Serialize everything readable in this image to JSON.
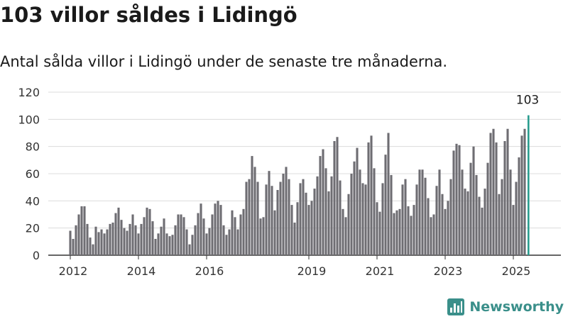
{
  "title": "103 villor såldes i Lidingö",
  "subtitle": "Antal sålda villor i Lidingö under de senaste tre månaderna.",
  "brand": {
    "name": "Newsworthy",
    "color": "#3a8f8a",
    "logo": "newsworthy-chart-logo"
  },
  "chart_data": {
    "type": "bar",
    "title": "103 villor såldes i Lidingö",
    "subtitle": "Antal sålda villor i Lidingö under de senaste tre månaderna.",
    "xlabel": "",
    "ylabel": "",
    "ylim": [
      0,
      120
    ],
    "yticks": [
      0,
      20,
      40,
      60,
      80,
      100,
      120
    ],
    "xticks": [
      {
        "label": "2012",
        "index": 0
      },
      {
        "label": "2014",
        "index": 24
      },
      {
        "label": "2016",
        "index": 48
      },
      {
        "label": "2019",
        "index": 84
      },
      {
        "label": "2021",
        "index": 108
      },
      {
        "label": "2023",
        "index": 132
      },
      {
        "label": "2025",
        "index": 156
      }
    ],
    "grid": true,
    "bar_color": "#6e6d72",
    "highlight_color": "#2a9d8f",
    "highlight_label": "103",
    "categories": [
      "2012-01",
      "2012-02",
      "2012-03",
      "2012-04",
      "2012-05",
      "2012-06",
      "2012-07",
      "2012-08",
      "2012-09",
      "2012-10",
      "2012-11",
      "2012-12",
      "2013-01",
      "2013-02",
      "2013-03",
      "2013-04",
      "2013-05",
      "2013-06",
      "2013-07",
      "2013-08",
      "2013-09",
      "2013-10",
      "2013-11",
      "2013-12",
      "2014-01",
      "2014-02",
      "2014-03",
      "2014-04",
      "2014-05",
      "2014-06",
      "2014-07",
      "2014-08",
      "2014-09",
      "2014-10",
      "2014-11",
      "2014-12",
      "2015-01",
      "2015-02",
      "2015-03",
      "2015-04",
      "2015-05",
      "2015-06",
      "2015-07",
      "2015-08",
      "2015-09",
      "2015-10",
      "2015-11",
      "2015-12",
      "2016-01",
      "2016-02",
      "2016-03",
      "2016-04",
      "2016-05",
      "2016-06",
      "2016-07",
      "2016-08",
      "2016-09",
      "2016-10",
      "2016-11",
      "2016-12",
      "2017-01",
      "2017-02",
      "2017-03",
      "2017-04",
      "2017-05",
      "2017-06",
      "2017-07",
      "2017-08",
      "2017-09",
      "2017-10",
      "2017-11",
      "2017-12",
      "2018-01",
      "2018-02",
      "2018-03",
      "2018-04",
      "2018-05",
      "2018-06",
      "2018-07",
      "2018-08",
      "2018-09",
      "2018-10",
      "2018-11",
      "2018-12",
      "2019-01",
      "2019-02",
      "2019-03",
      "2019-04",
      "2019-05",
      "2019-06",
      "2019-07",
      "2019-08",
      "2019-09",
      "2019-10",
      "2019-11",
      "2019-12",
      "2020-01",
      "2020-02",
      "2020-03",
      "2020-04",
      "2020-05",
      "2020-06",
      "2020-07",
      "2020-08",
      "2020-09",
      "2020-10",
      "2020-11",
      "2020-12",
      "2021-01",
      "2021-02",
      "2021-03",
      "2021-04",
      "2021-05",
      "2021-06",
      "2021-07",
      "2021-08",
      "2021-09",
      "2021-10",
      "2021-11",
      "2021-12",
      "2022-01",
      "2022-02",
      "2022-03",
      "2022-04",
      "2022-05",
      "2022-06",
      "2022-07",
      "2022-08",
      "2022-09",
      "2022-10",
      "2022-11",
      "2022-12",
      "2023-01",
      "2023-02",
      "2023-03",
      "2023-04",
      "2023-05",
      "2023-06",
      "2023-07",
      "2023-08",
      "2023-09",
      "2023-10",
      "2023-11",
      "2023-12",
      "2024-01",
      "2024-02",
      "2024-03",
      "2024-04",
      "2024-05",
      "2024-06",
      "2024-07",
      "2024-08",
      "2024-09",
      "2024-10",
      "2024-11",
      "2024-12",
      "2025-01",
      "2025-02",
      "2025-03",
      "2025-04",
      "2025-05",
      "2025-06"
    ],
    "values": [
      18,
      12,
      22,
      30,
      36,
      36,
      23,
      13,
      8,
      21,
      17,
      19,
      16,
      19,
      23,
      24,
      31,
      35,
      26,
      20,
      18,
      23,
      30,
      22,
      16,
      23,
      28,
      35,
      34,
      25,
      12,
      16,
      21,
      27,
      16,
      14,
      15,
      22,
      30,
      30,
      28,
      19,
      8,
      15,
      22,
      31,
      38,
      27,
      16,
      20,
      30,
      38,
      40,
      37,
      22,
      15,
      19,
      33,
      28,
      19,
      30,
      34,
      54,
      56,
      73,
      65,
      54,
      27,
      28,
      52,
      62,
      51,
      33,
      48,
      54,
      60,
      65,
      56,
      37,
      24,
      39,
      53,
      56,
      46,
      37,
      40,
      49,
      58,
      73,
      78,
      64,
      47,
      58,
      84,
      87,
      55,
      34,
      28,
      45,
      60,
      69,
      79,
      63,
      53,
      52,
      83,
      88,
      64,
      39,
      32,
      53,
      74,
      90,
      59,
      31,
      33,
      34,
      52,
      56,
      36,
      29,
      37,
      52,
      63,
      63,
      57,
      42,
      28,
      30,
      51,
      63,
      45,
      34,
      40,
      56,
      77,
      82,
      81,
      63,
      49,
      47,
      68,
      80,
      59,
      43,
      35,
      49,
      68,
      90,
      93,
      83,
      45,
      56,
      84,
      93,
      63,
      37,
      54,
      72,
      88,
      93,
      103
    ]
  }
}
